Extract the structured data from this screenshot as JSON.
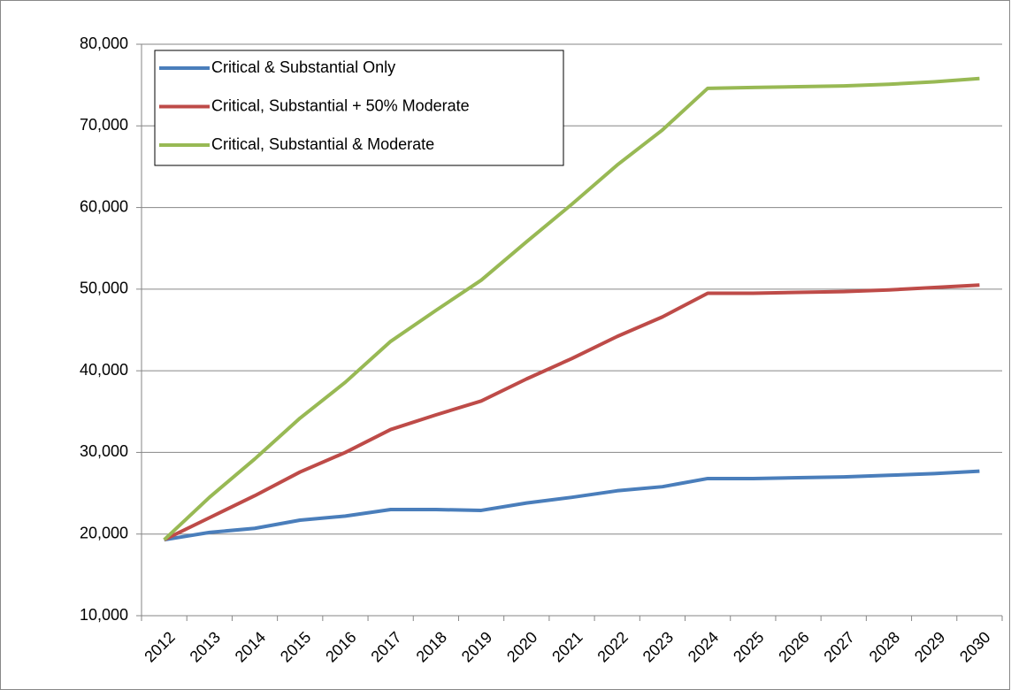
{
  "chart_data": {
    "type": "line",
    "categories": [
      "2012",
      "2013",
      "2014",
      "2015",
      "2016",
      "2017",
      "2018",
      "2019",
      "2020",
      "2021",
      "2022",
      "2023",
      "2024",
      "2025",
      "2026",
      "2027",
      "2028",
      "2029",
      "2030"
    ],
    "series": [
      {
        "name": "Critical & Substantial Only",
        "color": "#4a7ebb",
        "values": [
          19300,
          20200,
          20700,
          21700,
          22200,
          23000,
          23000,
          22900,
          23800,
          24500,
          25300,
          25800,
          26800,
          26800,
          26900,
          27000,
          27200,
          27400,
          27700
        ]
      },
      {
        "name": "Critical, Substantial + 50% Moderate",
        "color": "#be4b48",
        "values": [
          19300,
          22000,
          24700,
          27600,
          30000,
          32800,
          34600,
          36300,
          39000,
          41500,
          44200,
          46600,
          49500,
          49500,
          49600,
          49700,
          49900,
          50200,
          50500
        ]
      },
      {
        "name": "Critical, Substantial & Moderate",
        "color": "#98b954",
        "values": [
          19300,
          24500,
          29200,
          34200,
          38600,
          43600,
          47400,
          51100,
          55800,
          60400,
          65200,
          69500,
          74600,
          74700,
          74800,
          74900,
          75100,
          75400,
          75800
        ]
      }
    ],
    "ylim": [
      10000,
      80000
    ],
    "yticks": [
      {
        "value": 10000,
        "label": "10,000"
      },
      {
        "value": 20000,
        "label": "20,000"
      },
      {
        "value": 30000,
        "label": "30,000"
      },
      {
        "value": 40000,
        "label": "40,000"
      },
      {
        "value": 50000,
        "label": "50,000"
      },
      {
        "value": 60000,
        "label": "60,000"
      },
      {
        "value": 70000,
        "label": "70,000"
      },
      {
        "value": 80000,
        "label": "80,000"
      }
    ],
    "grid": true,
    "legend": "upper left"
  }
}
